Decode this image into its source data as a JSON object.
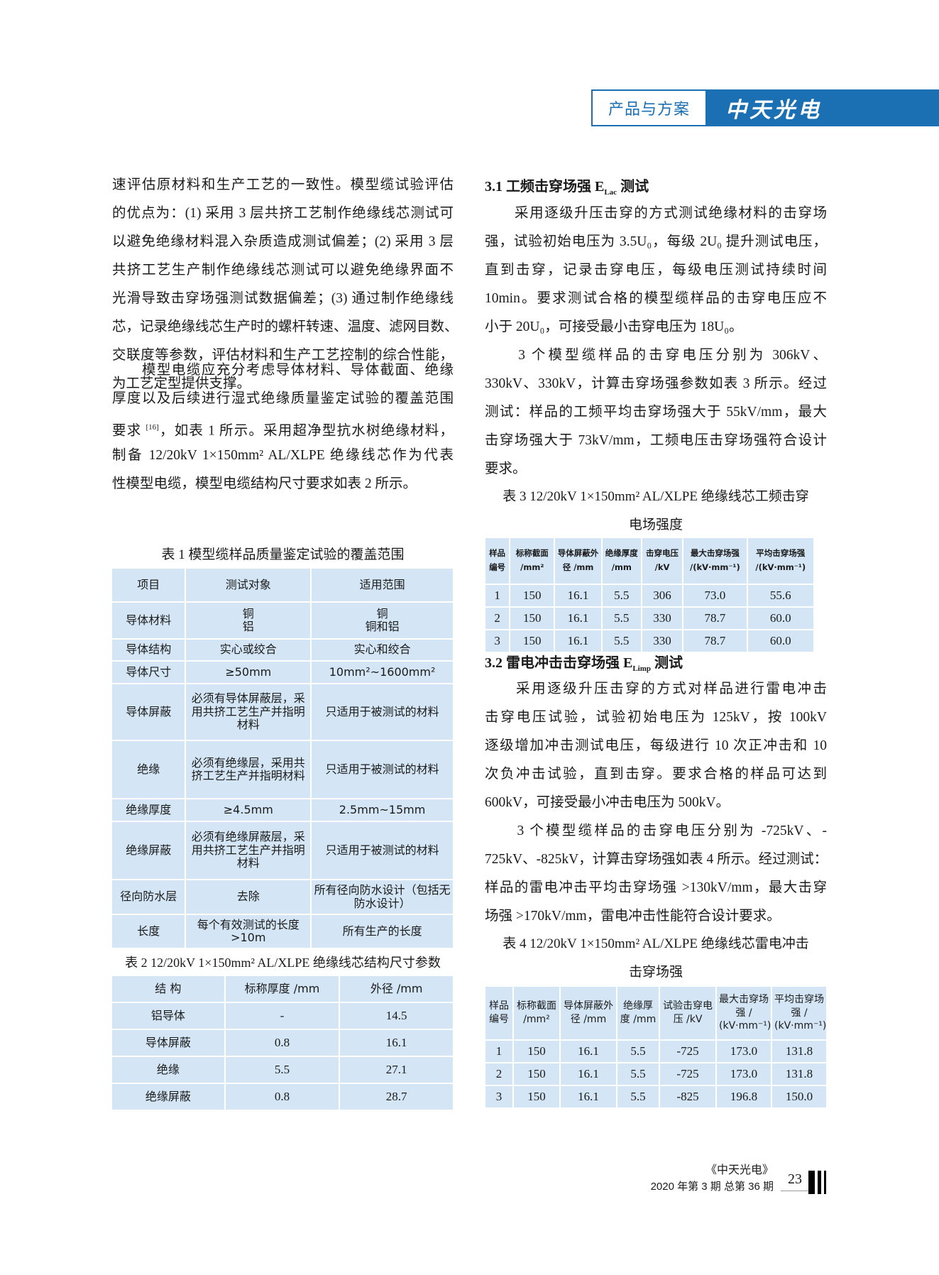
{
  "header": {
    "section": "产品与方案",
    "logo_text": "中天光电"
  },
  "left": {
    "para1": [
      "速评估原材料和生产工艺的一致性。模型缆试验评估",
      "的优点为：(1) 采用 3 层共挤工艺制作绝缘线芯测试可",
      "以避免绝缘材料混入杂质造成测试偏差；(2) 采用 3 层",
      "共挤工艺生产制作绝缘线芯测试可以避免绝缘界面不",
      "光滑导致击穿场强测试数据偏差；(3) 通过制作绝缘线",
      "芯，记录绝缘线芯生产时的螺杆转速、温度、滤网目数、",
      "交联度等参数，评估材料和生产工艺控制的综合性能，",
      "为工艺定型提供支撑。"
    ],
    "para2": [
      "　　模型电缆应充分考虑导体材料、导体截面、绝缘",
      "厚度以及后续进行湿式绝缘质量鉴定试验的覆盖范围"
    ],
    "para2_ref_pre": "要求 ",
    "para2_ref": "[16]",
    "para2_ref_post": "，如表 1 所示。采用超净型抗水树绝缘材料，",
    "para2_rest": [
      "制备 12/20kV 1×150mm² AL/XLPE 绝缘线芯作为代表",
      "性模型电缆，模型电缆结构尺寸要求如表 2 所示。"
    ],
    "table1": {
      "caption": "表 1 模型缆样品质量鉴定试验的覆盖范围",
      "headers": [
        "项目",
        "测试对象",
        "适用范围"
      ],
      "rows": [
        [
          "导体材料",
          "铜\n铝",
          "铜\n铜和铝"
        ],
        [
          "导体结构",
          "实心或绞合",
          "实心和绞合"
        ],
        [
          "导体尺寸",
          "≥50mm",
          "10mm²~1600mm²"
        ],
        [
          "导体屏蔽",
          "必须有导体屏蔽层，采用共挤工艺生产并指明材料",
          "只适用于被测试的材料"
        ],
        [
          "绝缘",
          "必须有绝缘层，采用共挤工艺生产并指明材料",
          "只适用于被测试的材料"
        ],
        [
          "绝缘厚度",
          "≥4.5mm",
          "2.5mm~15mm"
        ],
        [
          "绝缘屏蔽",
          "必须有绝缘屏蔽层，采用共挤工艺生产并指明材料",
          "只适用于被测试的材料"
        ],
        [
          "径向防水层",
          "去除",
          "所有径向防水设计（包括无防水设计）"
        ],
        [
          "长度",
          "每个有效测试的长度>10m",
          "所有生产的长度"
        ]
      ]
    },
    "table2": {
      "caption": "表 2 12/20kV 1×150mm² AL/XLPE 绝缘线芯结构尺寸参数",
      "headers": [
        "结 构",
        "标称厚度 /mm",
        "外径 /mm"
      ],
      "rows": [
        [
          "铝导体",
          "-",
          "14.5"
        ],
        [
          "导体屏蔽",
          "0.8",
          "16.1"
        ],
        [
          "绝缘",
          "5.5",
          "27.1"
        ],
        [
          "绝缘屏蔽",
          "0.8",
          "28.7"
        ]
      ]
    }
  },
  "right": {
    "h31_pre": "3.1  工频击穿场强 E",
    "h31_sub": "Lac",
    "h31_post": " 测试",
    "para1": [
      "　　采用逐级升压击穿的方式测试绝缘材料的击穿场",
      "强，试验初始电压为 3.5U₀，每级 2U₀ 提升测试电压，",
      "直到击穿，记录击穿电压，每级电压测试持续时间",
      "10min。要求测试合格的模型缆样品的击穿电压应不",
      "小于 20U₀，可接受最小击穿电压为 18U₀。"
    ],
    "para2": [
      "　　3 个模型缆样品的击穿电压分别为 306kV、",
      "330kV、330kV，计算击穿场强参数如表 3 所示。经过",
      "测试：样品的工频平均击穿场强大于 55kV/mm，最大",
      "击穿场强大于 73kV/mm，工频电压击穿场强符合设计",
      "要求。"
    ],
    "table3": {
      "caption": [
        "表 3 12/20kV 1×150mm² AL/XLPE 绝缘线芯工频击穿",
        "电场强度"
      ],
      "headers": [
        "样品编号",
        "标称截面 /mm²",
        "导体屏蔽外径 /mm",
        "绝缘厚度 /mm",
        "击穿电压 /kV",
        "最大击穿场强 /(kV·mm⁻¹)",
        "平均击穿场强 /(kV·mm⁻¹)"
      ],
      "rows": [
        [
          "1",
          "150",
          "16.1",
          "5.5",
          "306",
          "73.0",
          "55.6"
        ],
        [
          "2",
          "150",
          "16.1",
          "5.5",
          "330",
          "78.7",
          "60.0"
        ],
        [
          "3",
          "150",
          "16.1",
          "5.5",
          "330",
          "78.7",
          "60.0"
        ]
      ]
    },
    "h32_pre": "3.2  雷电冲击击穿场强 E",
    "h32_sub": "Limp",
    "h32_post": " 测试",
    "para3": [
      "　　采用逐级升压击穿的方式对样品进行雷电冲击",
      "击穿电压试验，试验初始电压为 125kV，按 100kV",
      "逐级增加冲击测试电压，每级进行 10 次正冲击和 10",
      "次负冲击试验，直到击穿。要求合格的样品可达到",
      "600kV，可接受最小冲击电压为 500kV。"
    ],
    "para4": [
      "　　3 个模型缆样品的击穿电压分别为 -725kV、-",
      "725kV、-825kV，计算击穿场强如表 4 所示。经过测试：",
      "样品的雷电冲击平均击穿场强 >130kV/mm，最大击穿",
      "场强 >170kV/mm，雷电冲击性能符合设计要求。"
    ],
    "table4": {
      "caption": [
        "表 4 12/20kV 1×150mm² AL/XLPE 绝缘线芯雷电冲击",
        "击穿场强"
      ],
      "headers": [
        "样品编号",
        "标称截面 /mm²",
        "导体屏蔽外径 /mm",
        "绝缘厚度 /mm",
        "试验击穿电压 /kV",
        "最大击穿场强 / (kV·mm⁻¹)",
        "平均击穿场强 / (kV·mm⁻¹)"
      ],
      "rows": [
        [
          "1",
          "150",
          "16.1",
          "5.5",
          "-725",
          "173.0",
          "131.8"
        ],
        [
          "2",
          "150",
          "16.1",
          "5.5",
          "-725",
          "173.0",
          "131.8"
        ],
        [
          "3",
          "150",
          "16.1",
          "5.5",
          "-825",
          "196.8",
          "150.0"
        ]
      ]
    }
  },
  "footer": {
    "magazine": "《中天光电》",
    "issue": "2020 年第 3 期 总第 36 期",
    "page": "23"
  },
  "colors": {
    "brand_blue": "#1b6fb3",
    "table_bg": "#d4e6f5"
  }
}
